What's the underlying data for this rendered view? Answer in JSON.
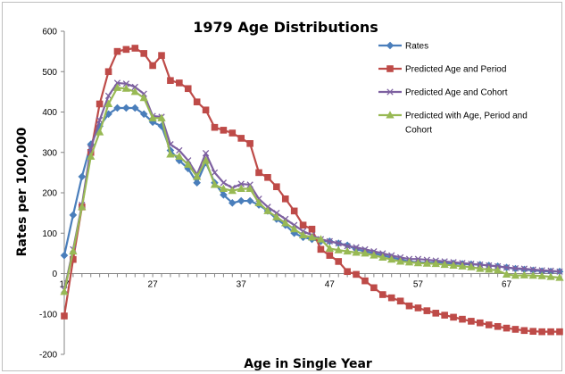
{
  "chart_data": {
    "type": "line",
    "title": "1979 Age Distributions",
    "xlabel": "Age in Single Year",
    "ylabel": "Rates per 100,000",
    "xlim": [
      17,
      73
    ],
    "ylim": [
      -200,
      600
    ],
    "x_ticks": [
      17,
      27,
      37,
      47,
      57,
      67
    ],
    "y_ticks": [
      -200,
      -100,
      0,
      100,
      200,
      300,
      400,
      500,
      600
    ],
    "grid": false,
    "legend_position": "top-right",
    "x": [
      17,
      18,
      19,
      20,
      21,
      22,
      23,
      24,
      25,
      26,
      27,
      28,
      29,
      30,
      31,
      32,
      33,
      34,
      35,
      36,
      37,
      38,
      39,
      40,
      41,
      42,
      43,
      44,
      45,
      46,
      47,
      48,
      49,
      50,
      51,
      52,
      53,
      54,
      55,
      56,
      57,
      58,
      59,
      60,
      61,
      62,
      63,
      64,
      65,
      66,
      67,
      68,
      69,
      70,
      71,
      72,
      73
    ],
    "series": [
      {
        "name": "Rates",
        "color": "#4a7ebb",
        "marker": "diamond",
        "values": [
          45,
          145,
          240,
          320,
          365,
          395,
          410,
          410,
          410,
          395,
          375,
          365,
          305,
          280,
          260,
          225,
          275,
          225,
          195,
          175,
          180,
          180,
          170,
          155,
          135,
          120,
          100,
          90,
          85,
          80,
          80,
          75,
          70,
          60,
          55,
          50,
          45,
          40,
          35,
          30,
          28,
          27,
          27,
          26,
          25,
          24,
          23,
          22,
          20,
          18,
          15,
          12,
          10,
          8,
          6,
          5,
          5
        ]
      },
      {
        "name": "Predicted Age and Period",
        "color": "#be4b48",
        "marker": "square",
        "values": [
          -105,
          35,
          165,
          300,
          420,
          500,
          550,
          555,
          558,
          545,
          515,
          540,
          478,
          472,
          458,
          425,
          405,
          362,
          355,
          348,
          335,
          322,
          250,
          238,
          215,
          185,
          155,
          120,
          110,
          60,
          45,
          30,
          5,
          -2,
          -18,
          -35,
          -52,
          -60,
          -68,
          -80,
          -85,
          -92,
          -98,
          -103,
          -108,
          -113,
          -118,
          -122,
          -127,
          -131,
          -135,
          -138,
          -141,
          -143,
          -144,
          -144,
          -144
        ]
      },
      {
        "name": "Predicted Age and Cohort",
        "color": "#7d60a0",
        "marker": "x",
        "values": [
          -40,
          60,
          170,
          310,
          380,
          440,
          472,
          470,
          462,
          445,
          390,
          388,
          320,
          305,
          280,
          245,
          298,
          250,
          225,
          212,
          222,
          220,
          185,
          165,
          150,
          135,
          120,
          105,
          95,
          85,
          80,
          75,
          68,
          65,
          60,
          55,
          50,
          45,
          40,
          36,
          36,
          34,
          32,
          30,
          28,
          26,
          24,
          22,
          20,
          18,
          15,
          13,
          12,
          10,
          8,
          7,
          5
        ]
      },
      {
        "name": "Predicted with Age, Period and Cohort",
        "color": "#98b954",
        "marker": "triangle",
        "values": [
          -45,
          55,
          165,
          290,
          350,
          420,
          460,
          458,
          450,
          435,
          385,
          385,
          295,
          290,
          270,
          240,
          280,
          220,
          210,
          205,
          210,
          210,
          175,
          155,
          140,
          125,
          110,
          95,
          90,
          85,
          62,
          58,
          55,
          52,
          50,
          45,
          40,
          35,
          30,
          28,
          26,
          25,
          24,
          22,
          20,
          18,
          16,
          12,
          10,
          8,
          -2,
          -5,
          -4,
          -5,
          -6,
          -8,
          -10
        ]
      }
    ]
  }
}
